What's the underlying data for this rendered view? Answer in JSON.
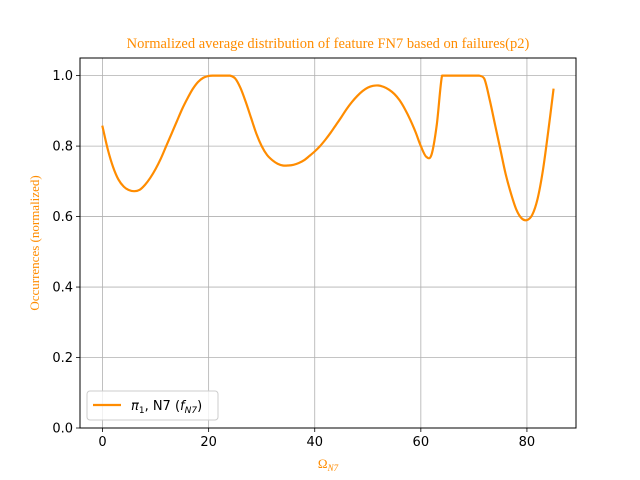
{
  "chart_data": {
    "type": "line",
    "title": "Normalized average distribution of feature FN7 based on failures(p2)",
    "xlabel": "Ω",
    "xlabel_sub": "N7",
    "ylabel": "Occurrences (normalized)",
    "xlim": [
      -4.25,
      89.25
    ],
    "ylim": [
      0.0,
      1.05
    ],
    "xticks": [
      0,
      20,
      40,
      60,
      80
    ],
    "yticks": [
      0.0,
      0.2,
      0.4,
      0.6,
      0.8,
      1.0
    ],
    "xtick_labels": [
      "0",
      "20",
      "40",
      "60",
      "80"
    ],
    "ytick_labels": [
      "0.0",
      "0.2",
      "0.4",
      "0.6",
      "0.8",
      "1.0"
    ],
    "grid": true,
    "legend_position": "lower-left",
    "series": [
      {
        "legend": {
          "pi": "π",
          "pi_sub": "1",
          "mid": ", N7 (",
          "f": "f",
          "f_sub": "N7",
          "end": ")"
        },
        "color": "#ff8c00",
        "x": [
          0,
          1,
          2,
          3,
          4,
          5,
          6,
          7,
          8,
          9,
          10,
          11,
          12,
          13,
          14,
          15,
          16,
          17,
          18,
          19,
          20,
          21,
          22,
          23,
          24,
          25,
          26,
          27,
          28,
          29,
          30,
          31,
          32,
          33,
          34,
          35,
          36,
          37,
          38,
          39,
          40,
          41,
          42,
          43,
          44,
          45,
          46,
          47,
          48,
          49,
          50,
          51,
          52,
          53,
          54,
          55,
          56,
          57,
          58,
          59,
          60,
          61,
          62,
          63,
          64,
          65,
          66,
          67,
          68,
          69,
          70,
          71,
          72,
          73,
          74,
          75,
          76,
          77,
          78,
          79,
          80,
          81,
          82,
          83,
          84,
          85
        ],
        "y": [
          0.855,
          0.79,
          0.74,
          0.705,
          0.685,
          0.675,
          0.672,
          0.676,
          0.69,
          0.71,
          0.735,
          0.765,
          0.8,
          0.835,
          0.87,
          0.905,
          0.935,
          0.962,
          0.982,
          0.994,
          0.999,
          1.0,
          1.0,
          1.0,
          1.0,
          0.992,
          0.965,
          0.925,
          0.88,
          0.835,
          0.8,
          0.775,
          0.76,
          0.75,
          0.745,
          0.745,
          0.747,
          0.752,
          0.76,
          0.772,
          0.785,
          0.8,
          0.818,
          0.838,
          0.86,
          0.882,
          0.905,
          0.925,
          0.942,
          0.956,
          0.966,
          0.971,
          0.972,
          0.968,
          0.96,
          0.948,
          0.93,
          0.905,
          0.875,
          0.84,
          0.8,
          0.77,
          0.775,
          0.86,
          1.0,
          1.0,
          1.0,
          1.0,
          1.0,
          1.0,
          1.0,
          1.0,
          0.99,
          0.93,
          0.86,
          0.79,
          0.72,
          0.665,
          0.62,
          0.595,
          0.59,
          0.605,
          0.65,
          0.73,
          0.84,
          0.96
        ]
      }
    ]
  }
}
